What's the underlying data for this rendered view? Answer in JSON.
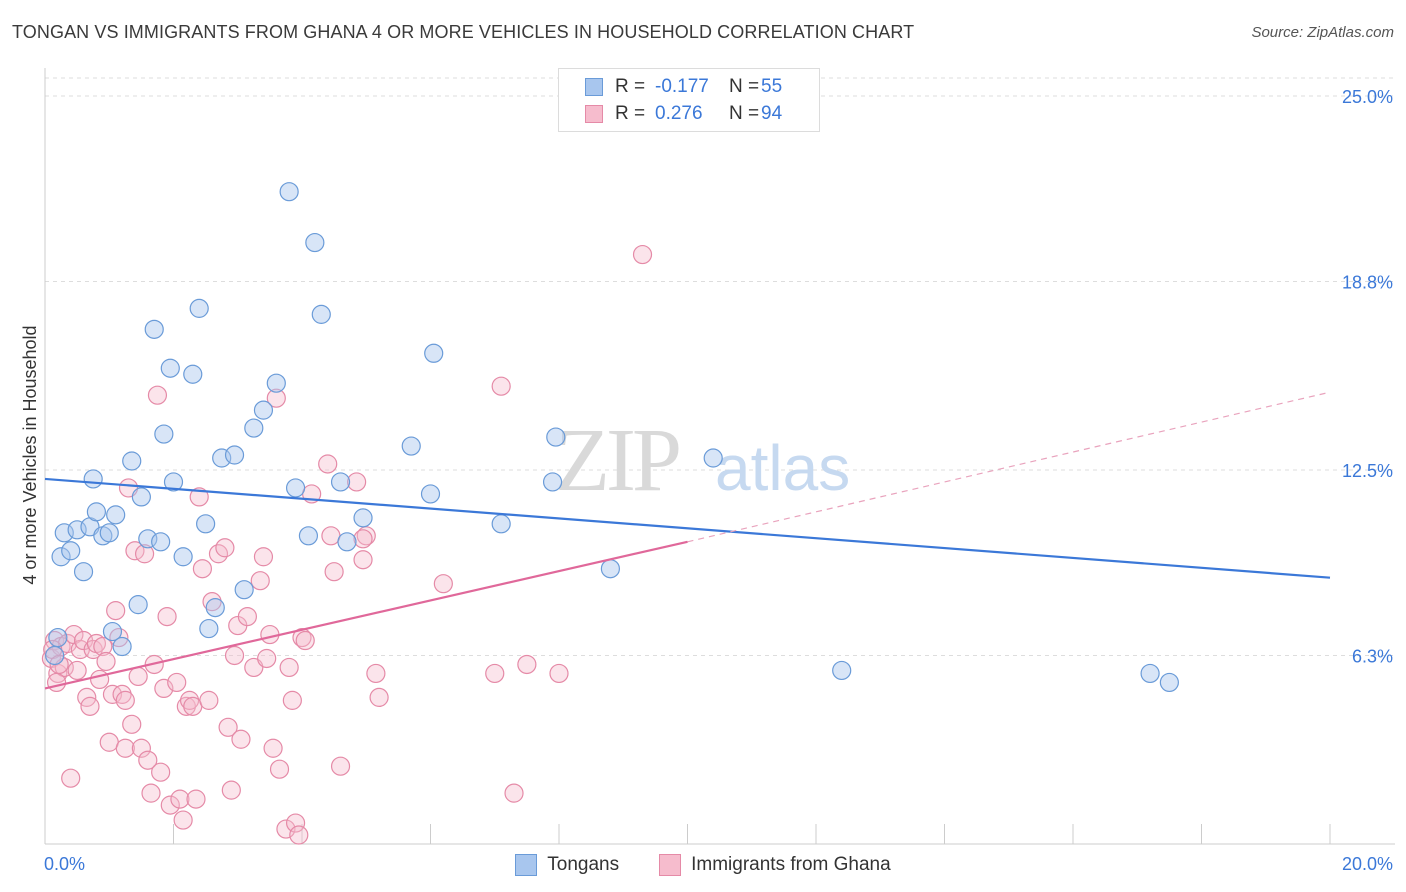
{
  "header": {
    "title": "TONGAN VS IMMIGRANTS FROM GHANA 4 OR MORE VEHICLES IN HOUSEHOLD CORRELATION CHART",
    "source": "Source: ZipAtlas.com"
  },
  "watermark": {
    "zip": "ZIP",
    "atlas": "atlas"
  },
  "legend_top": {
    "rows": [
      {
        "r_label": "R =",
        "r_value": "-0.177",
        "n_label": "N =",
        "n_value": "55",
        "color": "#a8c6ee",
        "border": "#6a9bd8"
      },
      {
        "r_label": "R =",
        "r_value": "0.276",
        "n_label": "N =",
        "n_value": "94",
        "color": "#f6bccd",
        "border": "#e58aa7"
      }
    ]
  },
  "legend_bottom": [
    {
      "label": "Tongans",
      "color": "#a8c6ee",
      "border": "#6a9bd8"
    },
    {
      "label": "Immigrants from Ghana",
      "color": "#f6bccd",
      "border": "#e58aa7"
    }
  ],
  "chart_data": {
    "type": "scatter",
    "title": "TONGAN VS IMMIGRANTS FROM GHANA 4 OR MORE VEHICLES IN HOUSEHOLD CORRELATION CHART",
    "xlabel": "",
    "ylabel": "4 or more Vehicles in Household",
    "xlim": [
      0,
      20
    ],
    "ylim": [
      0,
      25.6
    ],
    "x_tick_labels": [
      "0.0%",
      "20.0%"
    ],
    "y_ticks": [
      6.3,
      12.5,
      18.8,
      25.0
    ],
    "y_tick_labels": [
      "6.3%",
      "12.5%",
      "18.8%",
      "25.0%"
    ],
    "grid": true,
    "colors": {
      "tongans": "#3b78d8",
      "ghana": "#e0689a",
      "axis_text": "#3b78d8"
    },
    "series": [
      {
        "name": "Tongans",
        "trend": {
          "x0": 0,
          "y0": 12.2,
          "x1": 20,
          "y1": 8.9
        },
        "points": [
          [
            0.15,
            6.3
          ],
          [
            0.25,
            9.6
          ],
          [
            0.3,
            10.4
          ],
          [
            0.4,
            9.8
          ],
          [
            0.5,
            10.5
          ],
          [
            0.6,
            9.1
          ],
          [
            0.7,
            10.6
          ],
          [
            0.75,
            12.2
          ],
          [
            0.8,
            11.1
          ],
          [
            0.9,
            10.3
          ],
          [
            1.0,
            10.4
          ],
          [
            1.05,
            7.1
          ],
          [
            1.1,
            11.0
          ],
          [
            1.2,
            6.6
          ],
          [
            1.35,
            12.8
          ],
          [
            1.5,
            11.6
          ],
          [
            1.6,
            10.2
          ],
          [
            1.7,
            17.2
          ],
          [
            1.8,
            10.1
          ],
          [
            1.85,
            13.7
          ],
          [
            1.95,
            15.9
          ],
          [
            2.0,
            12.1
          ],
          [
            2.15,
            9.6
          ],
          [
            2.3,
            15.7
          ],
          [
            2.4,
            17.9
          ],
          [
            2.5,
            10.7
          ],
          [
            2.55,
            7.2
          ],
          [
            2.65,
            7.9
          ],
          [
            2.75,
            12.9
          ],
          [
            2.95,
            13.0
          ],
          [
            3.1,
            8.5
          ],
          [
            3.25,
            13.9
          ],
          [
            3.4,
            14.5
          ],
          [
            3.6,
            15.4
          ],
          [
            3.8,
            21.8
          ],
          [
            3.9,
            11.9
          ],
          [
            4.1,
            10.3
          ],
          [
            4.2,
            20.1
          ],
          [
            4.3,
            17.7
          ],
          [
            4.6,
            12.1
          ],
          [
            4.7,
            10.1
          ],
          [
            4.95,
            10.9
          ],
          [
            5.7,
            13.3
          ],
          [
            6.0,
            11.7
          ],
          [
            6.05,
            16.4
          ],
          [
            7.1,
            10.7
          ],
          [
            7.9,
            12.1
          ],
          [
            7.95,
            13.6
          ],
          [
            8.8,
            9.2
          ],
          [
            10.4,
            12.9
          ],
          [
            12.4,
            5.8
          ],
          [
            17.2,
            5.7
          ],
          [
            17.5,
            5.4
          ],
          [
            0.2,
            6.9
          ],
          [
            1.45,
            8.0
          ]
        ]
      },
      {
        "name": "Immigrants from Ghana",
        "trend": {
          "x0": 0,
          "y0": 5.2,
          "x1": 10.0,
          "y1": 10.1
        },
        "trend_extension": {
          "x0": 10.0,
          "y0": 10.1,
          "x1": 20,
          "y1": 15.1
        },
        "points": [
          [
            0.1,
            6.2
          ],
          [
            0.15,
            6.8
          ],
          [
            0.2,
            5.7
          ],
          [
            0.25,
            6.6
          ],
          [
            0.3,
            5.9
          ],
          [
            0.35,
            6.7
          ],
          [
            0.4,
            2.2
          ],
          [
            0.45,
            7.0
          ],
          [
            0.5,
            5.8
          ],
          [
            0.55,
            6.5
          ],
          [
            0.6,
            6.8
          ],
          [
            0.65,
            4.9
          ],
          [
            0.7,
            4.6
          ],
          [
            0.75,
            6.5
          ],
          [
            0.8,
            6.7
          ],
          [
            0.85,
            5.5
          ],
          [
            0.9,
            6.6
          ],
          [
            0.95,
            6.1
          ],
          [
            1.0,
            3.4
          ],
          [
            1.05,
            5.0
          ],
          [
            1.1,
            7.8
          ],
          [
            1.15,
            6.9
          ],
          [
            1.2,
            5.0
          ],
          [
            1.25,
            3.2
          ],
          [
            1.3,
            11.9
          ],
          [
            1.35,
            4.0
          ],
          [
            1.4,
            9.8
          ],
          [
            1.45,
            5.6
          ],
          [
            1.5,
            3.2
          ],
          [
            1.55,
            9.7
          ],
          [
            1.6,
            2.8
          ],
          [
            1.65,
            1.7
          ],
          [
            1.7,
            6.0
          ],
          [
            1.75,
            15.0
          ],
          [
            1.8,
            2.4
          ],
          [
            1.85,
            5.2
          ],
          [
            1.9,
            7.6
          ],
          [
            1.95,
            1.3
          ],
          [
            2.05,
            5.4
          ],
          [
            2.1,
            1.5
          ],
          [
            2.15,
            0.8
          ],
          [
            2.2,
            4.6
          ],
          [
            2.25,
            4.8
          ],
          [
            2.3,
            4.6
          ],
          [
            2.35,
            1.5
          ],
          [
            2.4,
            11.6
          ],
          [
            2.45,
            9.2
          ],
          [
            2.55,
            4.8
          ],
          [
            2.6,
            8.1
          ],
          [
            2.7,
            9.7
          ],
          [
            2.8,
            9.9
          ],
          [
            2.85,
            3.9
          ],
          [
            2.9,
            1.8
          ],
          [
            2.95,
            6.3
          ],
          [
            3.0,
            7.3
          ],
          [
            3.05,
            3.5
          ],
          [
            3.15,
            7.6
          ],
          [
            3.25,
            5.9
          ],
          [
            3.35,
            8.8
          ],
          [
            3.4,
            9.6
          ],
          [
            3.45,
            6.2
          ],
          [
            3.5,
            7.0
          ],
          [
            3.55,
            3.2
          ],
          [
            3.6,
            14.9
          ],
          [
            3.65,
            2.5
          ],
          [
            3.75,
            0.5
          ],
          [
            3.8,
            5.9
          ],
          [
            3.85,
            4.8
          ],
          [
            3.9,
            0.7
          ],
          [
            3.95,
            0.3
          ],
          [
            4.0,
            6.9
          ],
          [
            4.05,
            6.8
          ],
          [
            4.15,
            11.7
          ],
          [
            4.4,
            12.7
          ],
          [
            4.45,
            10.3
          ],
          [
            4.5,
            9.1
          ],
          [
            4.6,
            2.6
          ],
          [
            4.85,
            12.1
          ],
          [
            4.95,
            9.5
          ],
          [
            5.0,
            10.3
          ],
          [
            5.15,
            5.7
          ],
          [
            5.2,
            4.9
          ],
          [
            6.2,
            8.7
          ],
          [
            7.0,
            5.7
          ],
          [
            7.1,
            15.3
          ],
          [
            7.3,
            1.7
          ],
          [
            7.5,
            6.0
          ],
          [
            8.0,
            5.7
          ],
          [
            9.3,
            19.7
          ],
          [
            4.95,
            10.2
          ],
          [
            0.12,
            6.5
          ],
          [
            0.18,
            5.4
          ],
          [
            0.22,
            6.0
          ],
          [
            1.25,
            4.8
          ]
        ]
      }
    ]
  }
}
